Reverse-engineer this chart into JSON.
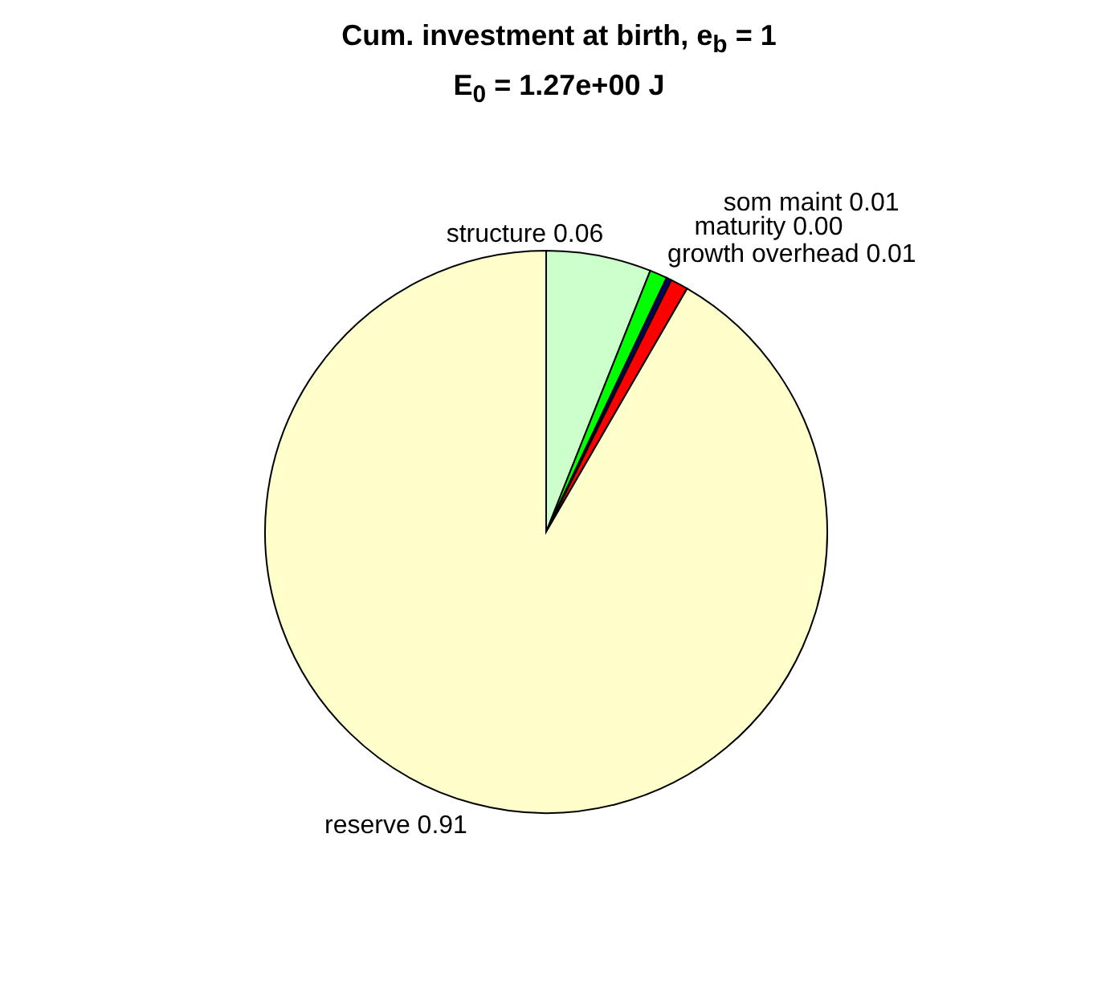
{
  "chart_data": {
    "type": "pie",
    "title": "Cum. investment at birth, e$_{b}$ = 1",
    "subtitle": "E$_{0}$ = 1.27e+00 J",
    "categories": [
      "structure",
      "growth overhead",
      "maturity",
      "som maint",
      "reserve"
    ],
    "values": [
      0.06,
      0.01,
      0.003,
      0.01,
      0.91
    ],
    "value_labels": [
      "0.06",
      "0.01",
      "0.00",
      "0.01",
      "0.91"
    ],
    "colors": [
      "#ccffcc",
      "#00ff00",
      "#000066",
      "#ff0000",
      "#ffffcc"
    ]
  }
}
